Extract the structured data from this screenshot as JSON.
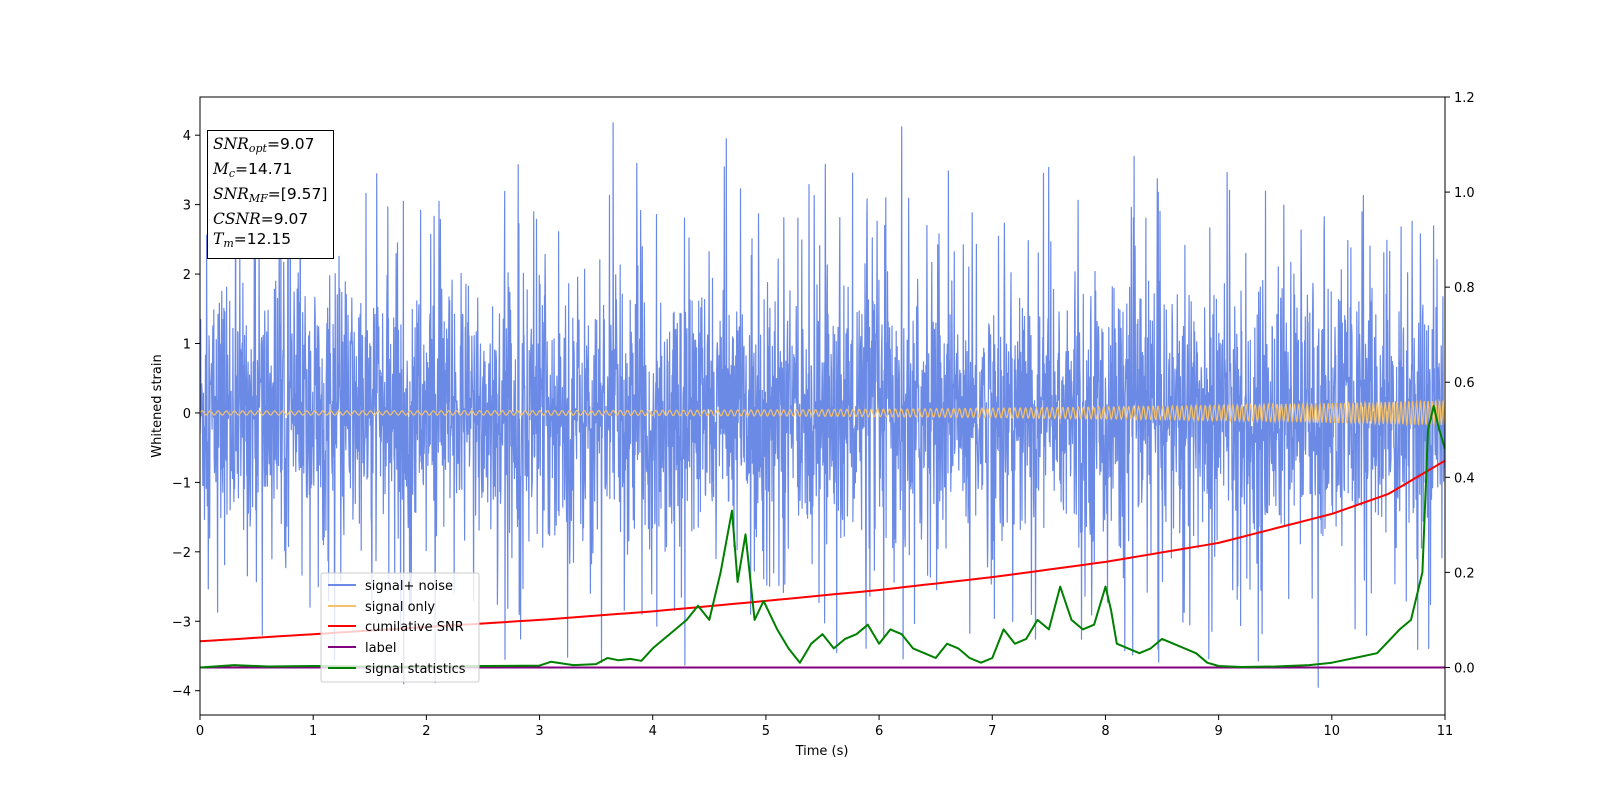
{
  "chart_data": {
    "type": "line",
    "xlabel": "Time (s)",
    "ylabel": "Whitened strain",
    "xlim": [
      0,
      11
    ],
    "ylim": [
      -4.35,
      4.55
    ],
    "y2lim": [
      -0.1,
      1.2
    ],
    "xticks": [
      "0",
      "1",
      "2",
      "3",
      "4",
      "5",
      "6",
      "7",
      "8",
      "9",
      "10",
      "11"
    ],
    "yticks": [
      "−4",
      "−3",
      "−2",
      "−1",
      "0",
      "1",
      "2",
      "3",
      "4"
    ],
    "y2ticks": [
      "0.0",
      "0.2",
      "0.4",
      "0.6",
      "0.8",
      "1.0",
      "1.2"
    ],
    "legend": {
      "placement": "lower-left",
      "entries": [
        {
          "label": "signal+ noise",
          "color": "#6b8ae6"
        },
        {
          "label": "signal only",
          "color": "#f5c26b"
        },
        {
          "label": "cumilative SNR",
          "color": "#ff0000"
        },
        {
          "label": "label",
          "color": "#800080"
        },
        {
          "label": "signal statistics",
          "color": "#008000"
        }
      ]
    },
    "info": {
      "snr_opt": "9.07",
      "mc": "14.71",
      "snr_mf": "[9.57]",
      "csnr": "9.07",
      "tm": "12.15"
    },
    "series": [
      {
        "name": "signal+ noise",
        "axis": "left",
        "color": "#6b8ae6",
        "noise_envelope": {
          "typical_amplitude": 2.3,
          "peak_max": 4.18,
          "peak_min": -3.95
        }
      },
      {
        "name": "signal only",
        "axis": "left",
        "color": "#f5c26b",
        "chirp": {
          "start_amplitude": 0.03,
          "end_amplitude": 0.18,
          "start_freq_hz": 14,
          "end_freq_hz": 30
        }
      },
      {
        "name": "cumilative SNR",
        "axis": "right",
        "color": "#ff0000",
        "x": [
          0,
          1,
          2,
          3,
          4,
          5,
          6,
          7,
          8,
          9,
          10,
          10.5,
          11
        ],
        "y": [
          0.055,
          0.07,
          0.085,
          0.1,
          0.118,
          0.14,
          0.163,
          0.19,
          0.222,
          0.262,
          0.323,
          0.365,
          0.435
        ]
      },
      {
        "name": "label",
        "axis": "right",
        "color": "#800080",
        "x": [
          0,
          11
        ],
        "y": [
          0.0,
          0.0
        ]
      },
      {
        "name": "signal statistics",
        "axis": "right",
        "color": "#008000",
        "x": [
          0,
          0.3,
          0.6,
          1.0,
          1.5,
          2.0,
          2.5,
          3.0,
          3.1,
          3.3,
          3.5,
          3.6,
          3.7,
          3.8,
          3.9,
          4.0,
          4.1,
          4.2,
          4.3,
          4.4,
          4.5,
          4.6,
          4.7,
          4.75,
          4.82,
          4.9,
          4.98,
          5.1,
          5.2,
          5.3,
          5.4,
          5.5,
          5.6,
          5.7,
          5.8,
          5.9,
          6.0,
          6.1,
          6.2,
          6.3,
          6.4,
          6.5,
          6.6,
          6.7,
          6.8,
          6.9,
          7.0,
          7.1,
          7.2,
          7.3,
          7.4,
          7.5,
          7.6,
          7.7,
          7.8,
          7.9,
          8.0,
          8.05,
          8.1,
          8.2,
          8.3,
          8.4,
          8.5,
          8.6,
          8.7,
          8.8,
          8.9,
          9.0,
          9.2,
          9.5,
          9.8,
          10.0,
          10.2,
          10.4,
          10.6,
          10.7,
          10.8,
          10.85,
          10.9,
          10.95,
          11.0
        ],
        "y": [
          0.0,
          0.005,
          0.002,
          0.003,
          0.002,
          0.001,
          0.003,
          0.004,
          0.012,
          0.005,
          0.007,
          0.02,
          0.015,
          0.018,
          0.014,
          0.04,
          0.06,
          0.08,
          0.1,
          0.13,
          0.1,
          0.2,
          0.33,
          0.18,
          0.28,
          0.1,
          0.14,
          0.08,
          0.04,
          0.01,
          0.05,
          0.07,
          0.04,
          0.06,
          0.07,
          0.09,
          0.05,
          0.08,
          0.07,
          0.04,
          0.03,
          0.02,
          0.05,
          0.04,
          0.02,
          0.01,
          0.02,
          0.08,
          0.05,
          0.06,
          0.1,
          0.08,
          0.17,
          0.1,
          0.08,
          0.09,
          0.17,
          0.12,
          0.05,
          0.04,
          0.03,
          0.04,
          0.06,
          0.05,
          0.04,
          0.03,
          0.01,
          0.003,
          0.001,
          0.002,
          0.005,
          0.01,
          0.02,
          0.03,
          0.08,
          0.1,
          0.2,
          0.5,
          0.55,
          0.5,
          0.46
        ]
      }
    ]
  }
}
